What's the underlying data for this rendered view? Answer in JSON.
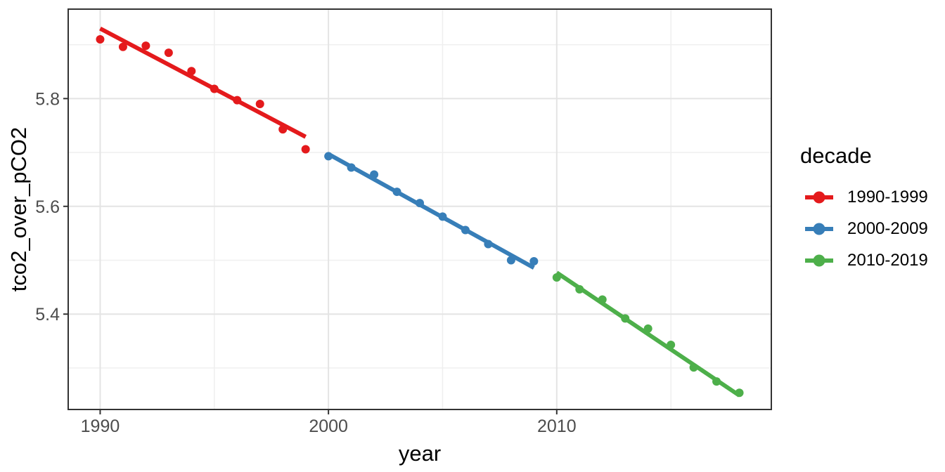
{
  "style": {
    "background": "#FFFFFF",
    "panel_border_color": "#333333",
    "grid_major_color": "#E4E4E4",
    "grid_minor_color": "#EFEFEF",
    "tick_color": "#333333",
    "tick_label_color": "#4D4D4D",
    "axis_title_color": "#000000"
  },
  "chart_data": {
    "type": "scatter",
    "title": "",
    "xlabel": "year",
    "ylabel": "tco2_over_pCO2",
    "x_domain": [
      1988.6,
      2019.4
    ],
    "y_domain": [
      5.223,
      5.966
    ],
    "x_major_ticks": [
      1990,
      2000,
      2010
    ],
    "x_tick_labels": [
      "1990",
      "2000",
      "2010"
    ],
    "x_minor_ticks": [
      1995,
      2005,
      2015
    ],
    "y_major_ticks": [
      5.8,
      5.6,
      5.4
    ],
    "y_tick_labels": [
      "5.8",
      "5.6",
      "5.4"
    ],
    "y_minor_ticks": [
      5.9,
      5.7,
      5.5,
      5.3
    ],
    "grid": "major+minor",
    "legend": {
      "title": "decade",
      "position": "right",
      "items": [
        {
          "label": "1990-1999",
          "color": "#E41A1C"
        },
        {
          "label": "2000-2009",
          "color": "#377EB8"
        },
        {
          "label": "2010-2019",
          "color": "#4DAF4A"
        }
      ]
    },
    "series": [
      {
        "name": "1990-1999",
        "color": "#E41A1C",
        "x": [
          1990,
          1991,
          1992,
          1993,
          1994,
          1995,
          1996,
          1997,
          1998,
          1999
        ],
        "y": [
          5.91,
          5.896,
          5.898,
          5.885,
          5.851,
          5.818,
          5.797,
          5.79,
          5.743,
          5.706
        ],
        "trend": {
          "x1": 1990,
          "y1": 5.93,
          "x2": 1999,
          "y2": 5.729
        }
      },
      {
        "name": "2000-2009",
        "color": "#377EB8",
        "x": [
          2000,
          2001,
          2002,
          2003,
          2004,
          2005,
          2006,
          2007,
          2008,
          2009
        ],
        "y": [
          5.693,
          5.672,
          5.659,
          5.627,
          5.606,
          5.581,
          5.556,
          5.53,
          5.5,
          5.498
        ],
        "trend": {
          "x1": 2000,
          "y1": 5.697,
          "x2": 2009,
          "y2": 5.486
        }
      },
      {
        "name": "2010-2019",
        "color": "#4DAF4A",
        "x": [
          2010,
          2011,
          2012,
          2013,
          2014,
          2015,
          2016,
          2017,
          2018
        ],
        "y": [
          5.468,
          5.446,
          5.427,
          5.392,
          5.373,
          5.343,
          5.301,
          5.275,
          5.254
        ],
        "trend": {
          "x1": 2010,
          "y1": 5.477,
          "x2": 2018,
          "y2": 5.249
        }
      }
    ]
  }
}
